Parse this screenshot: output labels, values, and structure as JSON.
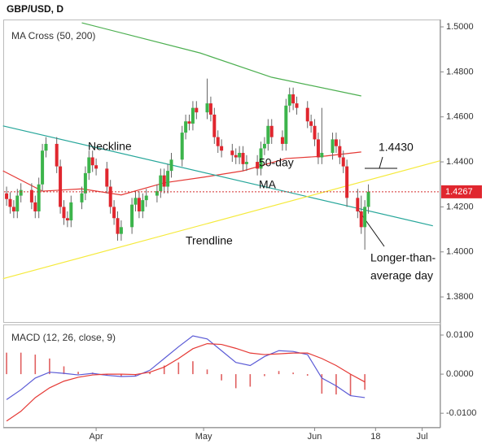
{
  "page_title": "GBP/USD, D",
  "chart_data": [
    {
      "type": "candlestick",
      "title": "MA Cross (50, 200)",
      "x": [
        6,
        7,
        8,
        9,
        10,
        13,
        14,
        15,
        16,
        17,
        20,
        21,
        22,
        23,
        24,
        27,
        28,
        29,
        30,
        31,
        34,
        35,
        36,
        37,
        38,
        41,
        42,
        43,
        44,
        45,
        48,
        49,
        50,
        51,
        52,
        55,
        56,
        57,
        58,
        59,
        62,
        63,
        64,
        65,
        66,
        69,
        70,
        71,
        72,
        73,
        76,
        77,
        78,
        79,
        80,
        83,
        84,
        85,
        86,
        87,
        90,
        91,
        92,
        93,
        94,
        97,
        98,
        99,
        100,
        101,
        104,
        105,
        106,
        107
      ],
      "open": [
        1.426,
        1.4235,
        1.42,
        1.418,
        1.425,
        1.4275,
        1.422,
        1.418,
        1.43,
        1.445,
        1.448,
        1.438,
        1.42,
        1.415,
        1.414,
        1.422,
        1.426,
        1.435,
        1.442,
        1.4385,
        1.437,
        1.429,
        1.42,
        1.415,
        1.408,
        1.411,
        1.421,
        1.424,
        1.418,
        1.423,
        1.425,
        1.427,
        1.434,
        1.429,
        1.436,
        1.441,
        1.453,
        1.458,
        1.457,
        1.464,
        1.462,
        1.466,
        1.461,
        1.451,
        1.447,
        1.445,
        1.443,
        1.442,
        1.444,
        1.439,
        1.44,
        1.437,
        1.446,
        1.448,
        1.456,
        1.451,
        1.448,
        1.465,
        1.47,
        1.466,
        1.464,
        1.458,
        1.456,
        1.45,
        1.442,
        1.444,
        1.45,
        1.447,
        1.442,
        1.438,
        1.424,
        1.418,
        1.411,
        1.42
      ],
      "high": [
        1.429,
        1.4265,
        1.423,
        1.428,
        1.4305,
        1.4305,
        1.425,
        1.433,
        1.448,
        1.451,
        1.451,
        1.441,
        1.423,
        1.418,
        1.425,
        1.429,
        1.438,
        1.445,
        1.445,
        1.4415,
        1.44,
        1.432,
        1.423,
        1.418,
        1.414,
        1.424,
        1.427,
        1.427,
        1.426,
        1.428,
        1.43,
        1.437,
        1.437,
        1.439,
        1.444,
        1.456,
        1.461,
        1.461,
        1.467,
        1.467,
        1.477,
        1.469,
        1.464,
        1.454,
        1.45,
        1.448,
        1.446,
        1.447,
        1.447,
        1.443,
        1.443,
        1.449,
        1.451,
        1.459,
        1.459,
        1.454,
        1.468,
        1.473,
        1.473,
        1.469,
        1.467,
        1.461,
        1.459,
        1.453,
        1.464,
        1.453,
        1.453,
        1.45,
        1.445,
        1.441,
        1.428,
        1.425,
        1.423,
        1.43
      ],
      "low": [
        1.4205,
        1.417,
        1.415,
        1.415,
        1.422,
        1.419,
        1.415,
        1.415,
        1.427,
        1.442,
        1.435,
        1.417,
        1.412,
        1.411,
        1.411,
        1.419,
        1.423,
        1.432,
        1.4355,
        1.434,
        1.426,
        1.417,
        1.412,
        1.405,
        1.405,
        1.408,
        1.418,
        1.415,
        1.415,
        1.42,
        1.422,
        1.424,
        1.426,
        1.426,
        1.433,
        1.438,
        1.45,
        1.454,
        1.454,
        1.459,
        1.459,
        1.458,
        1.448,
        1.444,
        1.442,
        1.44,
        1.439,
        1.439,
        1.436,
        1.436,
        1.434,
        1.434,
        1.443,
        1.445,
        1.448,
        1.445,
        1.445,
        1.462,
        1.463,
        1.461,
        1.455,
        1.453,
        1.447,
        1.439,
        1.439,
        1.441,
        1.444,
        1.439,
        1.435,
        1.42,
        1.415,
        1.408,
        1.401,
        1.417
      ],
      "close": [
        1.4235,
        1.42,
        1.418,
        1.425,
        1.4275,
        1.422,
        1.418,
        1.43,
        1.445,
        1.448,
        1.438,
        1.42,
        1.415,
        1.414,
        1.422,
        1.426,
        1.435,
        1.442,
        1.4385,
        1.437,
        1.429,
        1.42,
        1.415,
        1.408,
        1.411,
        1.421,
        1.424,
        1.418,
        1.423,
        1.425,
        1.427,
        1.434,
        1.429,
        1.436,
        1.441,
        1.453,
        1.458,
        1.457,
        1.464,
        1.462,
        1.466,
        1.461,
        1.451,
        1.447,
        1.445,
        1.443,
        1.442,
        1.444,
        1.439,
        1.44,
        1.437,
        1.446,
        1.448,
        1.456,
        1.451,
        1.448,
        1.465,
        1.47,
        1.466,
        1.464,
        1.458,
        1.456,
        1.45,
        1.442,
        1.444,
        1.45,
        1.447,
        1.442,
        1.438,
        1.424,
        1.418,
        1.411,
        1.42,
        1.4267
      ],
      "up_color": "#3cb44b",
      "down_color": "#e0262e",
      "lines": [
        {
          "color": "#4caf50",
          "x": [
            27,
            60,
            80,
            105
          ],
          "values": [
            1.5018,
            1.4884,
            1.4776,
            1.4693
          ]
        },
        {
          "color": "#e53935",
          "x": [
            5,
            16,
            27,
            38,
            50,
            61,
            72,
            84,
            95,
            105
          ],
          "values": [
            1.436,
            1.427,
            1.428,
            1.4253,
            1.4307,
            1.4332,
            1.436,
            1.4415,
            1.4426,
            1.4444
          ]
        },
        {
          "color": "#26a69a",
          "x": [
            5,
            125
          ],
          "values": [
            1.456,
            1.4116
          ]
        },
        {
          "color": "#f5ea3c",
          "x": [
            5,
            127
          ],
          "values": [
            1.3881,
            1.4405
          ]
        }
      ],
      "last_price": {
        "value": 1.4267,
        "label": "1.4267"
      },
      "annotations": [
        "Neckline",
        "Trendline",
        "50-day",
        "MA",
        "1.4430",
        "Longer-than-",
        "average day"
      ],
      "xlim": [
        5.3,
        127.1
      ],
      "ylim": [
        1.3692,
        1.5029
      ],
      "yticks": [
        {
          "value": 1.38,
          "label": "1.3800"
        },
        {
          "value": 1.4,
          "label": "1.4000"
        },
        {
          "value": 1.42,
          "label": "1.4200"
        },
        {
          "value": 1.44,
          "label": "1.4400"
        },
        {
          "value": 1.46,
          "label": "1.4600"
        },
        {
          "value": 1.48,
          "label": "1.4800"
        },
        {
          "value": 1.5,
          "label": "1.5000"
        }
      ]
    },
    {
      "type": "macd",
      "title": "MACD (12, 26, close, 9)",
      "x": [
        6,
        10,
        14,
        18,
        22,
        26,
        30,
        34,
        38,
        42,
        46,
        50,
        54,
        58,
        62,
        66,
        70,
        74,
        78,
        82,
        86,
        90,
        94,
        98,
        102,
        106
      ],
      "series": [
        {
          "color": "#5b5bd6",
          "values": [
            -0.0065,
            -0.004,
            -0.001,
            0.0005,
            0.0002,
            -0.0002,
            0.0002,
            -0.0003,
            -0.0006,
            -0.0005,
            0.001,
            0.004,
            0.007,
            0.0098,
            0.009,
            0.006,
            0.003,
            0.0022,
            0.0045,
            0.006,
            0.0058,
            0.005,
            -0.001,
            -0.003,
            -0.0055,
            -0.006
          ]
        },
        {
          "color": "#e53935",
          "values": [
            -0.012,
            -0.0095,
            -0.006,
            -0.0035,
            -0.0018,
            -0.0008,
            -0.0002,
            0.0,
            0.0,
            -0.0001,
            0.0005,
            0.0018,
            0.004,
            0.0065,
            0.0078,
            0.0076,
            0.0066,
            0.0054,
            0.005,
            0.0052,
            0.0054,
            0.0054,
            0.004,
            0.0022,
            0.0,
            -0.002
          ]
        }
      ],
      "histogram": {
        "color": "#e06060",
        "values": [
          0.0055,
          0.0055,
          0.005,
          0.004,
          0.002,
          0.0006,
          0.0004,
          -0.0003,
          -0.0006,
          -0.0004,
          0.0005,
          0.0022,
          0.003,
          0.0033,
          0.0012,
          -0.0016,
          -0.0036,
          -0.0032,
          -0.0005,
          0.0008,
          0.0004,
          -0.0004,
          -0.005,
          -0.0052,
          -0.0055,
          -0.004
        ]
      },
      "xlim": [
        5.3,
        127.1
      ],
      "ylim": [
        -0.0135,
        0.0125
      ],
      "yticks": [
        {
          "value": -0.01,
          "label": "-0.0100"
        },
        {
          "value": 0,
          "label": "0.0000"
        },
        {
          "value": 0.01,
          "label": "0.0100"
        }
      ],
      "xticks": [
        {
          "value": 31,
          "label": "Apr"
        },
        {
          "value": 61,
          "label": "May"
        },
        {
          "value": 92,
          "label": "Jun"
        },
        {
          "value": 109,
          "label": "18"
        },
        {
          "value": 122,
          "label": "Jul"
        }
      ]
    }
  ]
}
